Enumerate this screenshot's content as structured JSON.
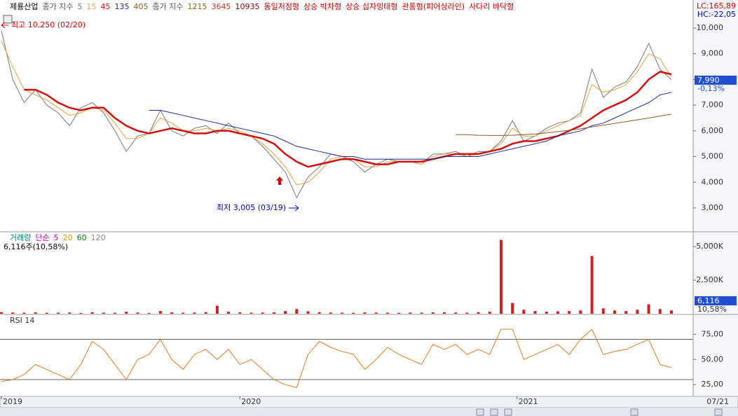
{
  "header": {
    "stock_name": "제룡산업",
    "ma_prefix": "종가 지수",
    "long_ma_prefix": "종가 지수",
    "long_ma": [
      {
        "name": "1215",
        "color": "#8b6914"
      },
      {
        "name": "3645",
        "color": "#c0392b"
      },
      {
        "name": "10935",
        "color": "#8b0000"
      }
    ],
    "patterns": [
      "동일저점형",
      "상승 박차형",
      "상승 십자잉태형",
      "관통형(피어싱라인)",
      "사다리 바닥형"
    ],
    "lc_label": "LC:165,89",
    "hc_label": "HC:-22,05",
    "last_price_label": "7,990",
    "change_label": "-0,13%",
    "cursor_date": "07/21"
  },
  "chart_data": [
    {
      "type": "line",
      "annotations": [
        {
          "text": "최고 10,250 (02/20)",
          "color": "#d00000"
        },
        {
          "text": "최저 3,005 (03/19)",
          "color": "#0000c0"
        }
      ],
      "ylim": [
        2100,
        11090
      ],
      "yticks": [
        {
          "value": 3000,
          "label": "3,000"
        },
        {
          "value": 4000,
          "label": "4,000"
        },
        {
          "value": 5000,
          "label": "5,000"
        },
        {
          "value": 6000,
          "label": "6,000"
        },
        {
          "value": 7000,
          "label": "7,000"
        },
        {
          "value": 8000,
          "label": "8,000"
        },
        {
          "value": 9000,
          "label": "9,000"
        },
        {
          "value": 10000,
          "label": "10,000"
        }
      ],
      "series": [
        {
          "name": "5",
          "color": "#777777",
          "values": [
            9900,
            8000,
            7100,
            7600,
            7000,
            6700,
            6200,
            6900,
            7100,
            6700,
            6000,
            5200,
            5800,
            5900,
            6800,
            6000,
            5800,
            6100,
            6200,
            5900,
            6300,
            5900,
            5800,
            5400,
            4900,
            4400,
            3400,
            4200,
            4600,
            5100,
            5000,
            4800,
            4400,
            4700,
            4900,
            4800,
            4800,
            4700,
            5100,
            5100,
            5200,
            5000,
            5200,
            5200,
            5600,
            6400,
            5600,
            5800,
            6100,
            6300,
            6400,
            6700,
            8400,
            7300,
            7700,
            7900,
            8500,
            9400,
            8400,
            7990
          ]
        },
        {
          "name": "15",
          "color": "#e8a040",
          "values": [
            9500,
            8500,
            7600,
            7400,
            7200,
            6900,
            6600,
            6700,
            6900,
            6800,
            6300,
            5700,
            5700,
            5900,
            6500,
            6300,
            6000,
            6000,
            6100,
            6000,
            6100,
            6000,
            5800,
            5500,
            5100,
            4600,
            3900,
            4000,
            4400,
            4900,
            5000,
            4900,
            4600,
            4600,
            4800,
            4800,
            4800,
            4700,
            5000,
            5100,
            5100,
            5000,
            5100,
            5200,
            5500,
            6100,
            5800,
            5800,
            6000,
            6200,
            6400,
            6600,
            7800,
            7500,
            7600,
            7800,
            8300,
            9000,
            8800,
            8100
          ]
        },
        {
          "name": "45",
          "color": "#d01010",
          "values": [
            null,
            null,
            7600,
            7600,
            7400,
            7100,
            6900,
            6800,
            6900,
            6900,
            6500,
            6200,
            6000,
            5900,
            6000,
            6100,
            6000,
            5900,
            5900,
            6000,
            6000,
            5900,
            5800,
            5700,
            5500,
            5100,
            4800,
            4600,
            4700,
            4800,
            4900,
            4900,
            4800,
            4700,
            4700,
            4800,
            4800,
            4800,
            4900,
            5000,
            5100,
            5100,
            5100,
            5200,
            5300,
            5500,
            5600,
            5600,
            5700,
            5800,
            6000,
            6200,
            6500,
            6800,
            7000,
            7200,
            7500,
            8000,
            8300,
            8200
          ]
        },
        {
          "name": "135",
          "color": "#1a2aa0",
          "values": [
            null,
            null,
            null,
            null,
            null,
            null,
            null,
            null,
            null,
            null,
            null,
            null,
            null,
            6800,
            6800,
            6700,
            6600,
            6500,
            6400,
            6300,
            6200,
            6100,
            6000,
            5900,
            5800,
            5600,
            5400,
            5300,
            5200,
            5100,
            5000,
            5000,
            4900,
            4900,
            4900,
            4900,
            4900,
            4900,
            4900,
            5000,
            5000,
            5000,
            5000,
            5100,
            5200,
            5300,
            5400,
            5500,
            5600,
            5800,
            5900,
            6000,
            6200,
            6300,
            6500,
            6700,
            6900,
            7100,
            7400,
            7500
          ]
        },
        {
          "name": "405",
          "color": "#8b5a2b",
          "values": [
            null,
            null,
            null,
            null,
            null,
            null,
            null,
            null,
            null,
            null,
            null,
            null,
            null,
            null,
            null,
            null,
            null,
            null,
            null,
            null,
            null,
            null,
            null,
            null,
            null,
            null,
            null,
            null,
            null,
            null,
            null,
            null,
            null,
            null,
            null,
            null,
            null,
            null,
            null,
            null,
            5850,
            5850,
            5830,
            5820,
            5820,
            5830,
            5850,
            5880,
            5920,
            5970,
            6020,
            6080,
            6150,
            6220,
            6290,
            6360,
            6430,
            6500,
            6580,
            6650
          ]
        }
      ]
    },
    {
      "type": "bar",
      "title": "거래량",
      "ma_prefix": "단순",
      "ma": [
        {
          "name": "5",
          "color": "#c000c0"
        },
        {
          "name": "20",
          "color": "#d0a000"
        },
        {
          "name": "60",
          "color": "#008000"
        },
        {
          "name": "120",
          "color": "#888888"
        }
      ],
      "info": "6,116주(10,58%)",
      "last_label": "6,116",
      "last_pct_label": "10,58%",
      "color": "#d02020",
      "ylim": [
        0,
        6000
      ],
      "yticks": [
        {
          "value": 2500,
          "label": "2,500K"
        },
        {
          "value": 5000,
          "label": "5,000K"
        }
      ],
      "values": [
        120,
        90,
        80,
        100,
        70,
        80,
        90,
        60,
        110,
        80,
        70,
        150,
        90,
        60,
        200,
        100,
        80,
        90,
        120,
        600,
        150,
        100,
        80,
        90,
        110,
        200,
        350,
        180,
        120,
        90,
        80,
        70,
        100,
        90,
        80,
        70,
        90,
        80,
        100,
        110,
        90,
        80,
        120,
        150,
        5500,
        800,
        300,
        200,
        150,
        180,
        200,
        250,
        4300,
        400,
        250,
        200,
        300,
        700,
        350,
        250
      ]
    },
    {
      "type": "line",
      "title": "RSI 14",
      "color": "#e07b20",
      "bands": [
        30,
        70
      ],
      "ylim": [
        14,
        94
      ],
      "yticks": [
        {
          "value": 25,
          "label": "25,00"
        },
        {
          "value": 50,
          "label": "50,00"
        },
        {
          "value": 75,
          "label": "75,00"
        }
      ],
      "xticks": [
        {
          "value": 0,
          "label": "2019"
        },
        {
          "value": 21,
          "label": "2020"
        },
        {
          "value": 45.4,
          "label": "2021"
        }
      ],
      "values": [
        28,
        30,
        35,
        45,
        40,
        35,
        30,
        45,
        68,
        60,
        45,
        30,
        50,
        55,
        70,
        50,
        40,
        55,
        60,
        50,
        60,
        45,
        50,
        40,
        30,
        25,
        22,
        55,
        68,
        62,
        58,
        55,
        40,
        50,
        62,
        55,
        50,
        45,
        65,
        60,
        65,
        55,
        60,
        55,
        80,
        80,
        50,
        55,
        60,
        65,
        55,
        70,
        80,
        55,
        58,
        60,
        65,
        70,
        45,
        42
      ]
    }
  ]
}
